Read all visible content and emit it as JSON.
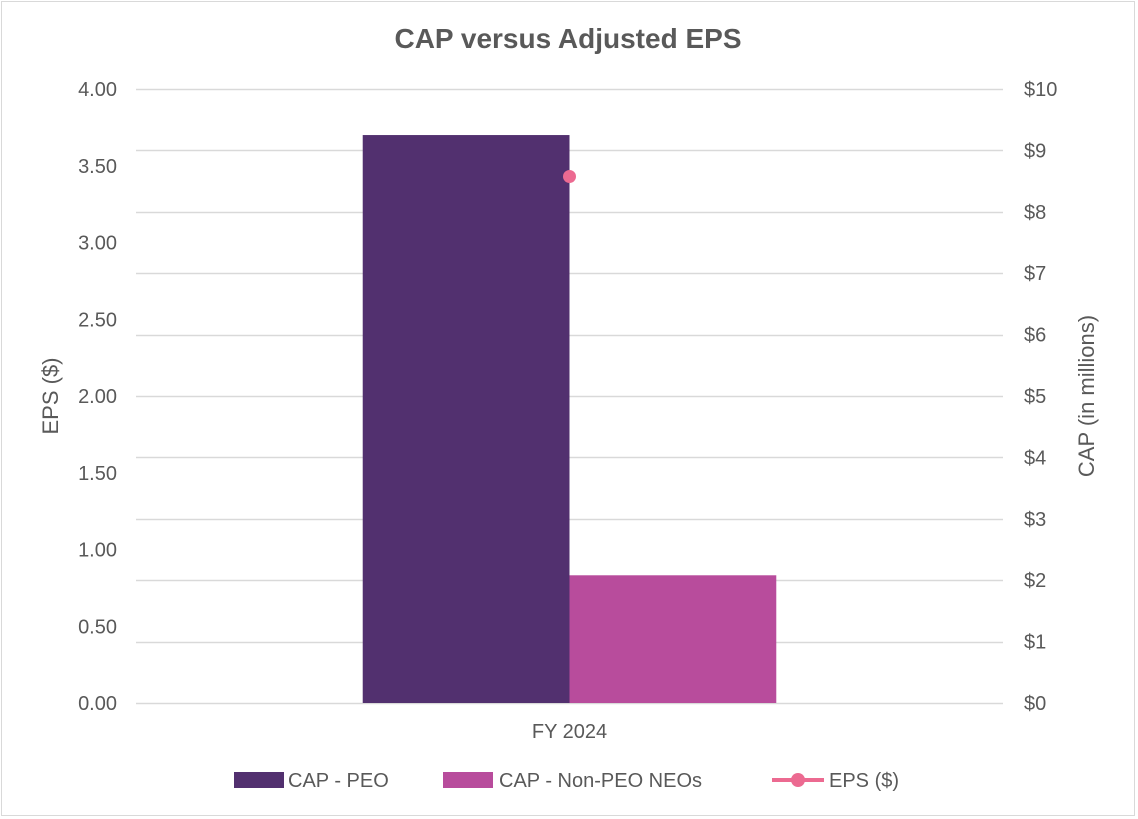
{
  "chart_data": {
    "type": "bar",
    "title": "CAP versus Adjusted EPS",
    "categories": [
      "FY 2024"
    ],
    "series": [
      {
        "name": "CAP - PEO",
        "kind": "bar",
        "axis": "right",
        "values": [
          9.25
        ],
        "color": "#52306F"
      },
      {
        "name": "CAP - Non-PEO NEOs",
        "kind": "bar",
        "axis": "right",
        "values": [
          2.08
        ],
        "color": "#B84C9C"
      },
      {
        "name": "EPS ($)",
        "kind": "line-marker",
        "axis": "left",
        "values": [
          3.43
        ],
        "color": "#EC6A91"
      }
    ],
    "y_left": {
      "label": "EPS ($)",
      "range": [
        0,
        4
      ],
      "ticks": [
        "0.00",
        "0.50",
        "1.00",
        "1.50",
        "2.00",
        "2.50",
        "3.00",
        "3.50",
        "4.00"
      ]
    },
    "y_right": {
      "label": "CAP (in millions)",
      "range": [
        0,
        10
      ],
      "ticks": [
        "$0",
        "$1",
        "$2",
        "$3",
        "$4",
        "$5",
        "$6",
        "$7",
        "$8",
        "$9",
        "$10"
      ]
    },
    "grid": true,
    "gridline_color": "#d9d9d9",
    "legend_position": "bottom"
  }
}
